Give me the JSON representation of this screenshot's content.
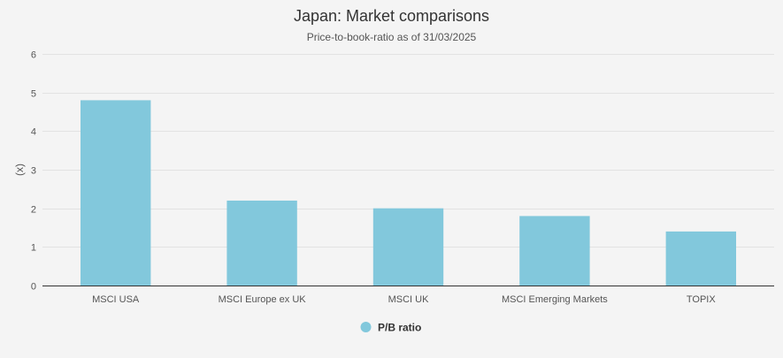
{
  "chart_data": {
    "type": "bar",
    "title": "Japan: Market comparisons",
    "subtitle": "Price-to-book-ratio as of 31/03/2025",
    "xlabel": "",
    "ylabel": "(x)",
    "categories": [
      "MSCI USA",
      "MSCI Europe ex UK",
      "MSCI UK",
      "MSCI Emerging Markets",
      "TOPIX"
    ],
    "series": [
      {
        "name": "P/B ratio",
        "values": [
          4.8,
          2.2,
          2.0,
          1.8,
          1.4
        ],
        "color": "#82c8dc"
      }
    ],
    "ylim": [
      0,
      6
    ],
    "yticks": [
      0,
      1,
      2,
      3,
      4,
      5,
      6
    ],
    "grid": true,
    "legend_position": "bottom-center"
  }
}
